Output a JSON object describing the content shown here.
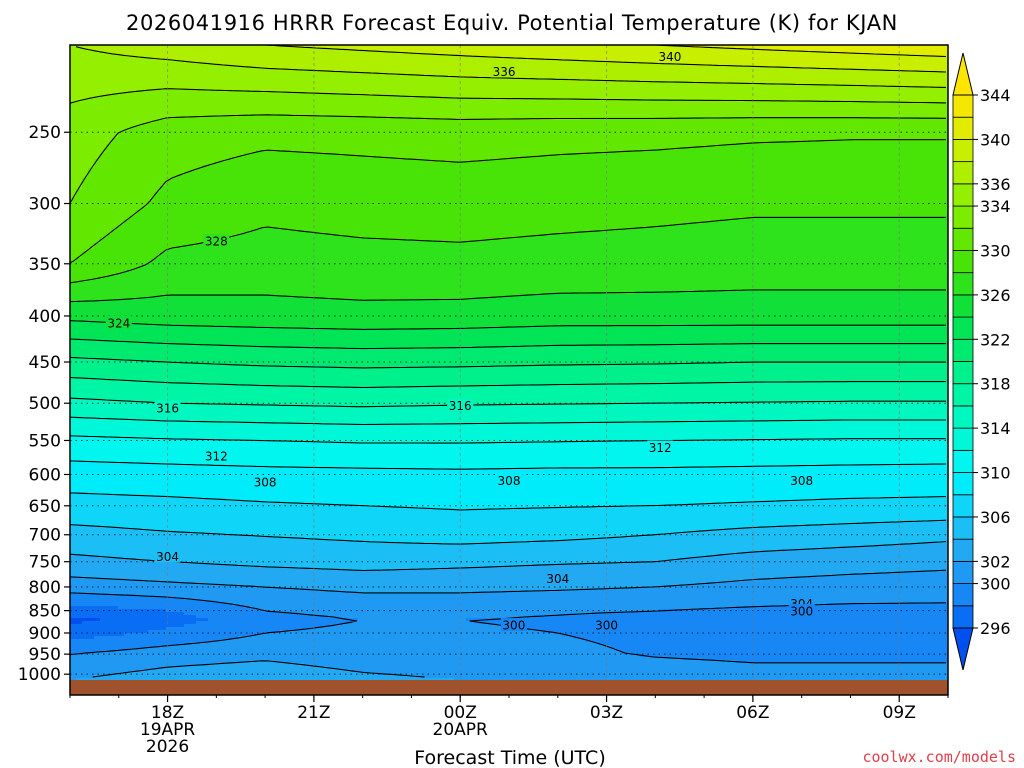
{
  "chart_data": {
    "type": "heatmap",
    "title": "2026041916 HRRR Forecast Equiv. Potential Temperature (K) for KJAN",
    "xlabel": "Forecast Time (UTC)",
    "ylabel": "",
    "credit": "coolwx.com/models",
    "x_ticks": [
      {
        "hour": 2,
        "lines": [
          "18Z",
          "19APR",
          "2026"
        ]
      },
      {
        "hour": 5,
        "lines": [
          "21Z"
        ]
      },
      {
        "hour": 8,
        "lines": [
          "00Z",
          "20APR"
        ]
      },
      {
        "hour": 11,
        "lines": [
          "03Z"
        ]
      },
      {
        "hour": 14,
        "lines": [
          "06Z"
        ]
      },
      {
        "hour": 17,
        "lines": [
          "09Z"
        ]
      }
    ],
    "xlim": [
      0,
      18
    ],
    "pressure_ticks": [
      250,
      300,
      350,
      400,
      450,
      500,
      550,
      600,
      650,
      700,
      750,
      800,
      850,
      900,
      950,
      1000
    ],
    "ylim": [
      1020,
      200
    ],
    "y_scale": "log-pressure",
    "grid": true,
    "colorbar": {
      "levels": [
        294,
        296,
        298,
        300,
        302,
        304,
        306,
        308,
        310,
        312,
        314,
        316,
        318,
        320,
        322,
        324,
        326,
        328,
        330,
        332,
        334,
        336,
        338,
        340,
        342,
        344,
        346
      ],
      "labels": [
        296,
        300,
        302,
        306,
        310,
        314,
        318,
        322,
        326,
        330,
        334,
        336,
        340,
        344
      ],
      "colors": [
        "#0050f0",
        "#0a6ef5",
        "#1787f5",
        "#1f99f2",
        "#22a9f2",
        "#1cbff5",
        "#0fd6f8",
        "#00ecfb",
        "#00f6ef",
        "#00f8d8",
        "#00f7bf",
        "#00f5a5",
        "#00f08c",
        "#00ea70",
        "#00e455",
        "#10e038",
        "#2ee21c",
        "#48e408",
        "#62e800",
        "#7cec00",
        "#94ef00",
        "#aeef00",
        "#c8ee00",
        "#e2ec00",
        "#f4e800",
        "#ffe600"
      ]
    },
    "contour_labels": [
      {
        "text": "340",
        "hour": 12.3,
        "p": 206
      },
      {
        "text": "336",
        "hour": 8.9,
        "p": 214
      },
      {
        "text": "328",
        "hour": 3.0,
        "p": 330
      },
      {
        "text": "324",
        "hour": 1.0,
        "p": 407
      },
      {
        "text": "316",
        "hour": 2.0,
        "p": 506
      },
      {
        "text": "316",
        "hour": 8.0,
        "p": 503
      },
      {
        "text": "312",
        "hour": 3.0,
        "p": 572
      },
      {
        "text": "312",
        "hour": 12.1,
        "p": 560
      },
      {
        "text": "308",
        "hour": 4.0,
        "p": 612
      },
      {
        "text": "308",
        "hour": 9.0,
        "p": 609
      },
      {
        "text": "308",
        "hour": 15.0,
        "p": 609
      },
      {
        "text": "304",
        "hour": 2.0,
        "p": 740
      },
      {
        "text": "304",
        "hour": 10.0,
        "p": 783
      },
      {
        "text": "304",
        "hour": 15.0,
        "p": 835
      },
      {
        "text": "300",
        "hour": 9.1,
        "p": 882
      },
      {
        "text": "300",
        "hour": 11.0,
        "p": 882
      },
      {
        "text": "300",
        "hour": 15.0,
        "p": 851
      }
    ],
    "profiles": [
      {
        "hour": 0,
        "pressure": [
          1015,
          950,
          900,
          870,
          850,
          800,
          750,
          700,
          650,
          600,
          550,
          500,
          450,
          400,
          350,
          300,
          250,
          200
        ],
        "theta_e": [
          302,
          300,
          297,
          295.5,
          297,
          301,
          303.5,
          305.3,
          307.3,
          309,
          311.5,
          315.5,
          319.5,
          324.5,
          330,
          332,
          333,
          336
        ]
      },
      {
        "hour": 2,
        "pressure": [
          1015,
          950,
          900,
          870,
          850,
          800,
          750,
          700,
          650,
          600,
          550,
          500,
          450,
          400,
          350,
          300,
          250,
          200
        ],
        "theta_e": [
          303,
          301,
          298.5,
          297,
          298,
          301.5,
          304,
          305.8,
          307.5,
          309.2,
          311.8,
          316,
          320,
          325,
          327.5,
          329.5,
          331,
          337
        ]
      },
      {
        "hour": 4,
        "pressure": [
          1015,
          950,
          900,
          870,
          850,
          800,
          750,
          700,
          650,
          600,
          550,
          500,
          450,
          400,
          350,
          300,
          250,
          200
        ],
        "theta_e": [
          303.5,
          301.5,
          300,
          299.5,
          300,
          302,
          304.5,
          306.1,
          307.8,
          309.4,
          312,
          316.2,
          320.4,
          325.2,
          327.2,
          328.5,
          330.5,
          338
        ]
      },
      {
        "hour": 6,
        "pressure": [
          1015,
          950,
          900,
          870,
          850,
          800,
          750,
          700,
          650,
          600,
          550,
          500,
          450,
          400,
          350,
          300,
          250,
          200
        ],
        "theta_e": [
          302.5,
          300.8,
          300.3,
          300,
          300.5,
          302.5,
          304.8,
          306.4,
          308,
          309.5,
          312.2,
          316.4,
          320.6,
          325.4,
          327.4,
          328.8,
          330.6,
          338.5
        ]
      },
      {
        "hour": 8,
        "pressure": [
          1015,
          950,
          900,
          870,
          850,
          800,
          750,
          700,
          650,
          600,
          550,
          500,
          450,
          400,
          350,
          300,
          250,
          200
        ],
        "theta_e": [
          302,
          300.5,
          300.2,
          300,
          300.5,
          302.5,
          304.5,
          306.8,
          308.2,
          309.6,
          312.2,
          316.2,
          320.5,
          325.3,
          327.5,
          328.9,
          330.8,
          339
        ]
      },
      {
        "hour": 10,
        "pressure": [
          1015,
          950,
          900,
          870,
          850,
          800,
          750,
          700,
          650,
          600,
          550,
          500,
          450,
          400,
          350,
          300,
          250,
          200
        ],
        "theta_e": [
          302,
          300.5,
          300,
          299.8,
          300.2,
          302.3,
          304.2,
          306.5,
          308.1,
          309.5,
          312.1,
          316.1,
          320.3,
          325,
          327.3,
          328.7,
          330.6,
          339.5
        ]
      },
      {
        "hour": 12,
        "pressure": [
          1015,
          950,
          900,
          870,
          850,
          800,
          750,
          700,
          650,
          600,
          550,
          500,
          450,
          400,
          350,
          300,
          250,
          200
        ],
        "theta_e": [
          301.5,
          299.8,
          299.5,
          299.5,
          300,
          302,
          304,
          306,
          308,
          309.5,
          312,
          316,
          320.2,
          325,
          327.2,
          328.5,
          330.5,
          340
        ]
      },
      {
        "hour": 14,
        "pressure": [
          1015,
          950,
          900,
          870,
          850,
          800,
          750,
          700,
          650,
          600,
          550,
          500,
          450,
          400,
          350,
          300,
          250,
          200
        ],
        "theta_e": [
          301,
          299.5,
          299.3,
          299.3,
          299.7,
          301.5,
          303.2,
          305.4,
          307.8,
          309.4,
          311.9,
          315.9,
          320,
          325,
          327,
          328.3,
          330.3,
          340.5
        ]
      },
      {
        "hour": 16,
        "pressure": [
          1015,
          950,
          900,
          870,
          850,
          800,
          750,
          700,
          650,
          600,
          550,
          500,
          450,
          400,
          350,
          300,
          250,
          200
        ],
        "theta_e": [
          301,
          299.5,
          299.3,
          299.3,
          299.5,
          301.2,
          302.8,
          305,
          307.6,
          309.3,
          311.8,
          315.8,
          320,
          325,
          327,
          328.3,
          330.2,
          341
        ]
      },
      {
        "hour": 18,
        "pressure": [
          1015,
          950,
          900,
          870,
          850,
          800,
          750,
          700,
          650,
          600,
          550,
          500,
          450,
          400,
          350,
          300,
          250,
          200
        ],
        "theta_e": [
          301,
          299.5,
          299.3,
          299.3,
          299.5,
          301,
          302.5,
          304.5,
          307.5,
          309.2,
          311.8,
          315.8,
          320,
          325,
          327,
          328.3,
          330.2,
          341.5
        ]
      }
    ],
    "contour_levels": [
      300,
      302,
      304,
      306,
      308,
      310,
      312,
      314,
      316,
      318,
      320,
      322,
      324,
      326,
      328,
      330,
      332,
      334,
      336,
      338,
      340
    ]
  }
}
